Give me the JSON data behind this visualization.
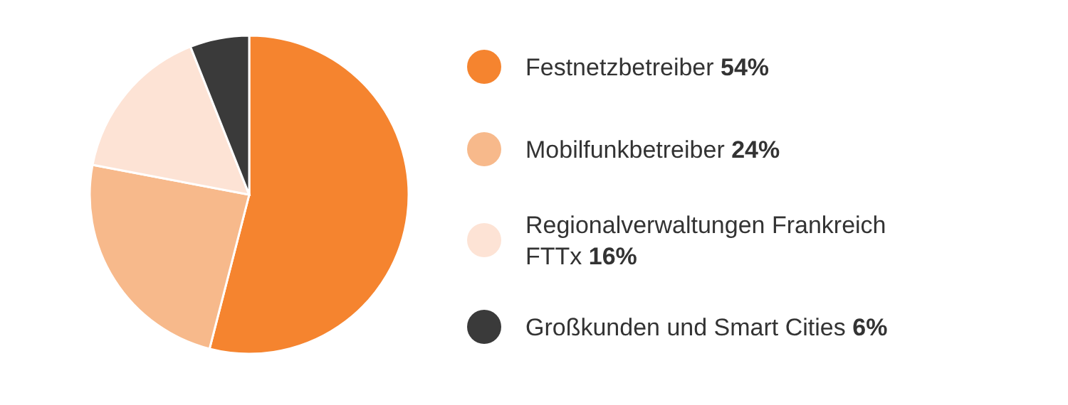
{
  "chart_data": {
    "type": "pie",
    "categories": [
      "Festnetzbetreiber",
      "Mobilfunkbetreiber",
      "Regionalverwaltungen Frankreich FTTx",
      "Großkunden und Smart Cities"
    ],
    "values": [
      54,
      24,
      16,
      6
    ],
    "colors": [
      "#f5842f",
      "#f7b98b",
      "#fde3d5",
      "#3a3a3a"
    ],
    "value_labels": [
      "54%",
      "24%",
      "16%",
      "6%"
    ],
    "legend": "right"
  }
}
